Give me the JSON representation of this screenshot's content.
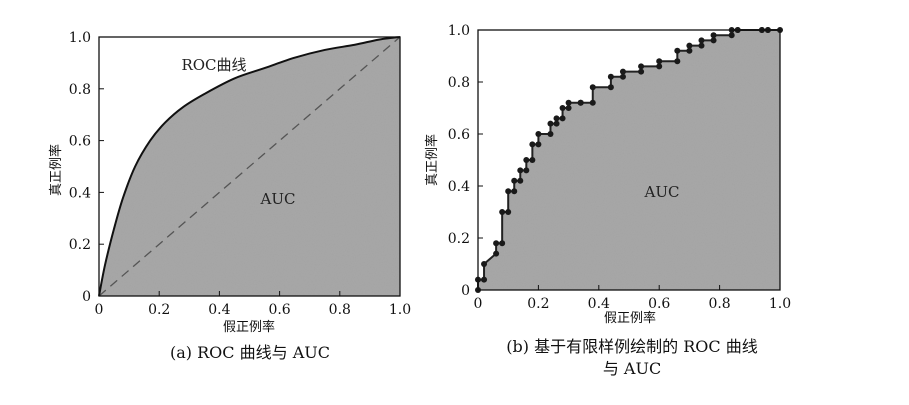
{
  "chart_data": [
    {
      "type": "area",
      "xlabel": "假正例率",
      "ylabel": "真正例率",
      "xlim": [
        0,
        1
      ],
      "ylim": [
        0,
        1
      ],
      "xtick_labels": [
        "0",
        "0.2",
        "0.4",
        "0.6",
        "0.8",
        "1.0"
      ],
      "ytick_labels": [
        "0",
        "0.2",
        "0.4",
        "0.6",
        "0.8",
        "1.0"
      ],
      "grid": false,
      "curve_label": "ROC曲线",
      "area_label": "AUC",
      "caption": "(a) ROC 曲线与 AUC",
      "series": [
        {
          "x": [
            0,
            0.02,
            0.05,
            0.08,
            0.12,
            0.17,
            0.22,
            0.28,
            0.35,
            0.45,
            0.55,
            0.65,
            0.75,
            0.85,
            0.93,
            1.0
          ],
          "y": [
            0,
            0.12,
            0.26,
            0.38,
            0.5,
            0.6,
            0.67,
            0.73,
            0.78,
            0.84,
            0.88,
            0.92,
            0.95,
            0.97,
            0.99,
            1.0
          ]
        }
      ],
      "reference_line": {
        "x": [
          0,
          1
        ],
        "y": [
          0,
          1
        ],
        "style": "dashed"
      },
      "area_fill": "#a8a8a8"
    },
    {
      "type": "line",
      "xlabel": "假正例率",
      "ylabel": "真正例率",
      "xlim": [
        0,
        1
      ],
      "ylim": [
        0,
        1
      ],
      "xtick_labels": [
        "0",
        "0.2",
        "0.4",
        "0.6",
        "0.8",
        "1.0"
      ],
      "ytick_labels": [
        "0",
        "0.2",
        "0.4",
        "0.6",
        "0.8",
        "1.0"
      ],
      "grid": false,
      "area_label": "AUC",
      "caption_lines": [
        "(b) 基于有限样例绘制的 ROC 曲线",
        "与 AUC"
      ],
      "series": [
        {
          "x": [
            0,
            0,
            0.02,
            0.02,
            0.06,
            0.06,
            0.08,
            0.08,
            0.1,
            0.1,
            0.12,
            0.12,
            0.14,
            0.14,
            0.16,
            0.16,
            0.18,
            0.18,
            0.2,
            0.2,
            0.24,
            0.24,
            0.26,
            0.26,
            0.28,
            0.28,
            0.3,
            0.3,
            0.34,
            0.34,
            0.38,
            0.38,
            0.44,
            0.44,
            0.48,
            0.48,
            0.54,
            0.54,
            0.6,
            0.6,
            0.66,
            0.66,
            0.7,
            0.7,
            0.74,
            0.74,
            0.78,
            0.78,
            0.84,
            0.84,
            0.86,
            0.86,
            0.94,
            0.94,
            0.96,
            0.96,
            1.0
          ],
          "y": [
            0,
            0.04,
            0.04,
            0.1,
            0.14,
            0.18,
            0.18,
            0.3,
            0.3,
            0.38,
            0.38,
            0.42,
            0.42,
            0.46,
            0.46,
            0.5,
            0.5,
            0.56,
            0.56,
            0.6,
            0.6,
            0.64,
            0.64,
            0.66,
            0.66,
            0.7,
            0.7,
            0.72,
            0.72,
            0.72,
            0.72,
            0.78,
            0.78,
            0.82,
            0.82,
            0.84,
            0.84,
            0.86,
            0.86,
            0.88,
            0.88,
            0.92,
            0.92,
            0.94,
            0.94,
            0.96,
            0.96,
            0.98,
            0.98,
            1.0,
            1.0,
            1.0,
            1.0,
            1.0,
            1.0,
            1.0,
            1.0
          ],
          "marker": "dot"
        }
      ],
      "area_fill": "#a8a8a8"
    }
  ]
}
